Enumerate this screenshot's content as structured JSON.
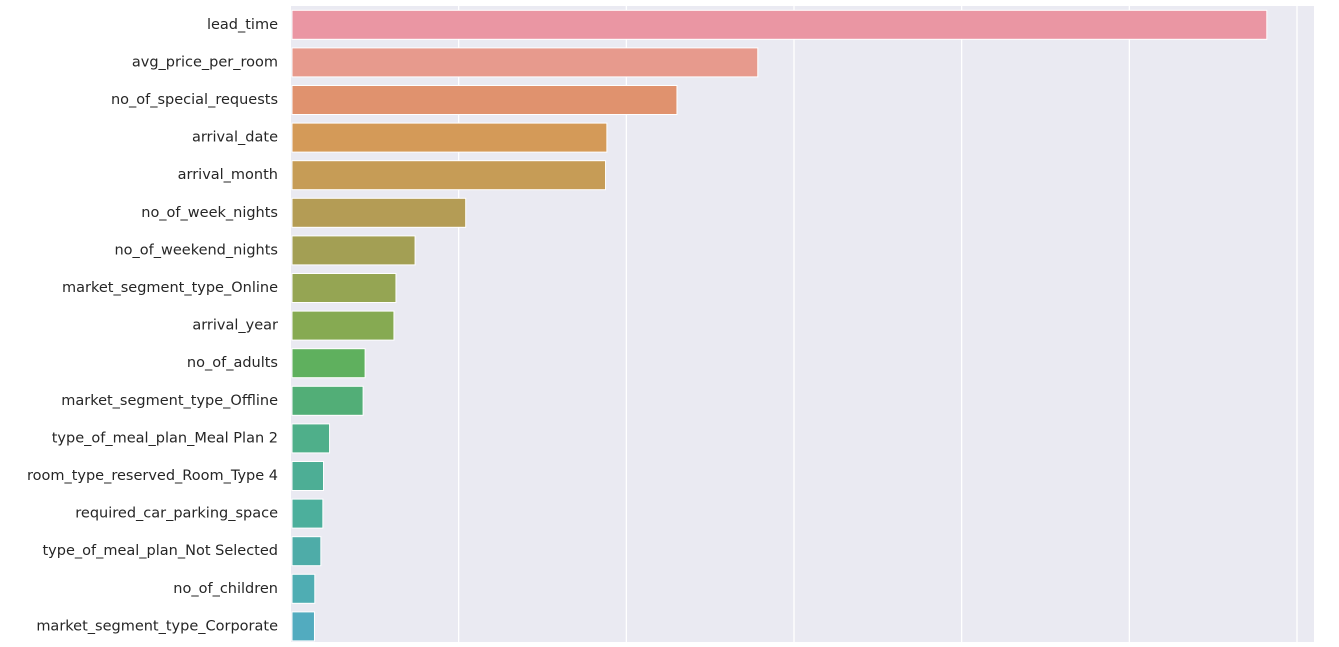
{
  "chart_data": {
    "type": "bar",
    "orientation": "horizontal",
    "categories": [
      "lead_time",
      "avg_price_per_room",
      "no_of_special_requests",
      "arrival_date",
      "arrival_month",
      "no_of_week_nights",
      "no_of_weekend_nights",
      "market_segment_type_Online",
      "arrival_year",
      "no_of_adults",
      "market_segment_type_Offline",
      "type_of_meal_plan_Meal Plan 2",
      "room_type_reserved_Room_Type 4",
      "required_car_parking_space",
      "type_of_meal_plan_Not Selected",
      "no_of_children",
      "market_segment_type_Corporate"
    ],
    "values": [
      0.2907,
      0.1389,
      0.1148,
      0.0939,
      0.0935,
      0.0518,
      0.0367,
      0.031,
      0.0304,
      0.0218,
      0.0212,
      0.0112,
      0.0094,
      0.0092,
      0.0086,
      0.0068,
      0.0067
    ],
    "colors": [
      "#ea96a3",
      "#e79a8d",
      "#e0926e",
      "#d49a58",
      "#c69c56",
      "#b49c55",
      "#a39f54",
      "#95a553",
      "#86aa52",
      "#5fb05e",
      "#52ae77",
      "#4faf8a",
      "#4dae95",
      "#4caf9c",
      "#4eaca8",
      "#4fadb3",
      "#52abbf"
    ],
    "xlim": [
      0,
      0.3
    ],
    "xticks": [
      0.05,
      0.1,
      0.15,
      0.2,
      0.25,
      0.3
    ],
    "grid": true,
    "background": "#eaeaf2"
  }
}
